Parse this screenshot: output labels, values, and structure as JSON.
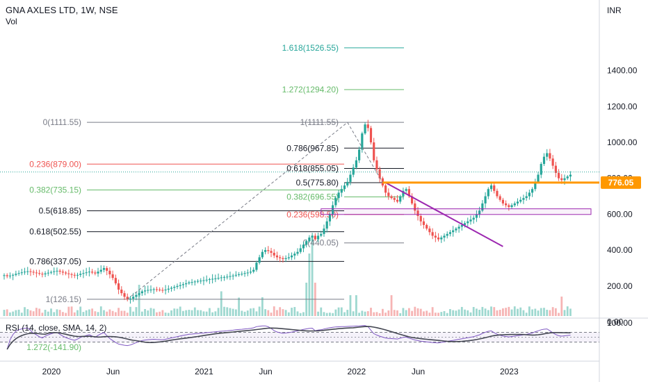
{
  "legend": {
    "title": "GNA AXLES LTD, 1W, NSE",
    "volume": "Vol"
  },
  "rsi_label": "RSI (14, close, SMA, 14, 2)",
  "axis": {
    "currency": "INR",
    "price_ticks": [
      "1400.00",
      "1200.00",
      "1000.00",
      "800.00",
      "600.00",
      "400.00",
      "200.00",
      "0.00"
    ],
    "rsi_ticks": [
      "100.00"
    ],
    "time_ticks": [
      "2020",
      "Jun",
      "2021",
      "Jun",
      "2022",
      "Jun",
      "2023"
    ],
    "last_price": "776.05"
  },
  "colors": {
    "up": "#26a69a",
    "down": "#ef5350",
    "vol_up": "#9ed8d0",
    "vol_down": "#f6b4b4",
    "trendline": "#9c27b0",
    "support": "#ff9800",
    "fib_low": "#ef5350",
    "fib_green": "#66bb6a",
    "fib_blue": "#26a69a",
    "rsi": "#7e57c2",
    "rsi_ma": "#434651"
  },
  "fib_retracement": [
    {
      "label": "0(1111.55)",
      "price": 1111.55,
      "color": "#787b86"
    },
    {
      "label": "0.236(879.00)",
      "price": 879.0,
      "color": "#ef5350"
    },
    {
      "label": "0.382(735.15)",
      "price": 735.15,
      "color": "#66bb6a"
    },
    {
      "label": "0.5(618.85)",
      "price": 618.85,
      "color": "#131722"
    },
    {
      "label": "0.618(502.55)",
      "price": 502.55,
      "color": "#131722"
    },
    {
      "label": "0.786(337.05)",
      "price": 337.05,
      "color": "#131722"
    },
    {
      "label": "1(126.15)",
      "price": 126.15,
      "color": "#787b86"
    },
    {
      "label": "1.272(-141.90)",
      "price": -141.9,
      "color": "#66bb6a"
    }
  ],
  "fib_extension": [
    {
      "label": "1.618(1526.55)",
      "price": 1526.55,
      "color": "#26a69a"
    },
    {
      "label": "1.272(1294.20)",
      "price": 1294.2,
      "color": "#66bb6a"
    },
    {
      "label": "1(1111.55)",
      "price": 1111.55,
      "color": "#787b86"
    },
    {
      "label": "0.786(967.85)",
      "price": 967.85,
      "color": "#131722"
    },
    {
      "label": "0.618(855.05)",
      "price": 855.05,
      "color": "#131722"
    },
    {
      "label": "0.5(775.80)",
      "price": 775.8,
      "color": "#131722"
    },
    {
      "label": "0.382(696.55)",
      "price": 696.55,
      "color": "#66bb6a"
    },
    {
      "label": "0.236(598.50)",
      "price": 598.5,
      "color": "#ef5350"
    },
    {
      "label": "0(440.05)",
      "price": 440.05,
      "color": "#787b86"
    }
  ],
  "chart_data": {
    "type": "candlestick",
    "price_range": [
      -210,
      1560
    ],
    "rsi_range": [
      0,
      100
    ],
    "time_axis": {
      "2020": 0,
      "Jun": 21,
      "2021": 52,
      "Jun2021": 73,
      "2022": 104,
      "Jun2022": 125,
      "2023": 156
    },
    "close": [
      260,
      255,
      258,
      262,
      268,
      272,
      276,
      280,
      282,
      279,
      275,
      272,
      268,
      265,
      270,
      274,
      278,
      282,
      285,
      280,
      275,
      270,
      266,
      262,
      258,
      262,
      268,
      272,
      276,
      280,
      275,
      270,
      280,
      290,
      300,
      285,
      265,
      245,
      215,
      180,
      160,
      140,
      125,
      130,
      140,
      150,
      160,
      170,
      175,
      178,
      180,
      182,
      180,
      178,
      176,
      180,
      185,
      190,
      195,
      200,
      205,
      210,
      215,
      220,
      222,
      225,
      228,
      230,
      232,
      235,
      238,
      240,
      242,
      245,
      248,
      250,
      252,
      255,
      258,
      262,
      265,
      268,
      272,
      275,
      280,
      290,
      330,
      360,
      390,
      400,
      395,
      385,
      370,
      360,
      355,
      350,
      355,
      360,
      370,
      380,
      390,
      410,
      430,
      450,
      470,
      480,
      460,
      480,
      490,
      520,
      560,
      600,
      650,
      690,
      720,
      740,
      760,
      780,
      820,
      860,
      900,
      960,
      1050,
      1100,
      1080,
      1000,
      900,
      850,
      800,
      760,
      720,
      700,
      690,
      680,
      670,
      700,
      730,
      740,
      700,
      660,
      620,
      590,
      560,
      540,
      520,
      500,
      480,
      470,
      460,
      470,
      480,
      490,
      500,
      510,
      520,
      530,
      540,
      550,
      560,
      570,
      580,
      600,
      620,
      660,
      700,
      740,
      760,
      730,
      700,
      680,
      660,
      650,
      640,
      650,
      660,
      670,
      680,
      690,
      700,
      720,
      740,
      780,
      820,
      880,
      920,
      940,
      910,
      870,
      830,
      800,
      790,
      800,
      810,
      820
    ]
  }
}
